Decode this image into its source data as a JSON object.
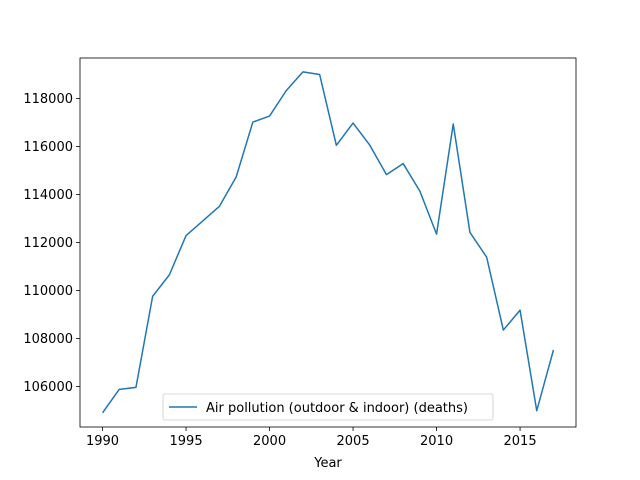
{
  "chart_data": {
    "type": "line",
    "xlabel": "Year",
    "ylabel": "",
    "xlim": [
      1988.65,
      2018.35
    ],
    "ylim": [
      104310,
      119690
    ],
    "xticks": [
      1990,
      1995,
      2000,
      2005,
      2010,
      2015
    ],
    "yticks": [
      106000,
      108000,
      110000,
      112000,
      114000,
      116000,
      118000
    ],
    "grid": false,
    "legend_position": "lower center",
    "line_color": "#1f77b4",
    "x": [
      1990,
      1991,
      1992,
      1993,
      1994,
      1995,
      1996,
      1997,
      1998,
      1999,
      2000,
      2001,
      2002,
      2003,
      2004,
      2005,
      2006,
      2007,
      2008,
      2009,
      2010,
      2011,
      2012,
      2013,
      2014,
      2015,
      2016,
      2017
    ],
    "series": [
      {
        "name": "Air pollution (outdoor & indoor) (deaths)",
        "values": [
          104900,
          105880,
          105960,
          109760,
          110650,
          112290,
          112900,
          113510,
          114730,
          117020,
          117270,
          118330,
          119110,
          119000,
          116050,
          116980,
          116060,
          114830,
          115290,
          114140,
          112350,
          116940,
          112420,
          111390,
          108350,
          109180,
          104990,
          107520
        ]
      }
    ]
  }
}
